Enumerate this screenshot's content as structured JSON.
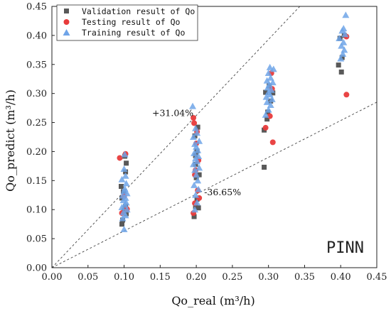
{
  "chart_data": {
    "type": "scatter",
    "xlabel": "Qo_real  (m³/h)",
    "ylabel": "Qo_predict  (m³/h)",
    "xlim": [
      0.0,
      0.45
    ],
    "ylim": [
      0.0,
      0.45
    ],
    "xticks": [
      0.0,
      0.05,
      0.1,
      0.15,
      0.2,
      0.25,
      0.3,
      0.35,
      0.4,
      0.45
    ],
    "yticks": [
      0.0,
      0.05,
      0.1,
      0.15,
      0.2,
      0.25,
      0.3,
      0.35,
      0.4,
      0.45
    ],
    "tick_labels": [
      "0.00",
      "0.05",
      "0.10",
      "0.15",
      "0.20",
      "0.25",
      "0.30",
      "0.35",
      "0.40",
      "0.45"
    ],
    "legend_position": "top-left",
    "grid": false,
    "model_label": "PINN",
    "bounds": [
      {
        "label": "+31.04%",
        "slope": 1.3104,
        "x_at": 0.2
      },
      {
        "label": "-36.65%",
        "slope": 0.6335,
        "x_at": 0.205
      }
    ],
    "series": [
      {
        "name": "Validation result of Qo",
        "marker": "square",
        "color": "#595959",
        "points": [
          [
            0.097,
            0.075
          ],
          [
            0.098,
            0.082
          ],
          [
            0.1,
            0.098
          ],
          [
            0.102,
            0.106
          ],
          [
            0.097,
            0.12
          ],
          [
            0.096,
            0.14
          ],
          [
            0.102,
            0.165
          ],
          [
            0.103,
            0.18
          ],
          [
            0.101,
            0.192
          ],
          [
            0.099,
            0.131
          ],
          [
            0.103,
            0.093
          ],
          [
            0.197,
            0.088
          ],
          [
            0.199,
            0.105
          ],
          [
            0.203,
            0.103
          ],
          [
            0.201,
            0.118
          ],
          [
            0.2,
            0.155
          ],
          [
            0.199,
            0.178
          ],
          [
            0.201,
            0.201
          ],
          [
            0.198,
            0.227
          ],
          [
            0.202,
            0.242
          ],
          [
            0.204,
            0.16
          ],
          [
            0.199,
            0.193
          ],
          [
            0.294,
            0.173
          ],
          [
            0.294,
            0.237
          ],
          [
            0.299,
            0.268
          ],
          [
            0.303,
            0.287
          ],
          [
            0.306,
            0.301
          ],
          [
            0.296,
            0.302
          ],
          [
            0.298,
            0.256
          ],
          [
            0.301,
            0.313
          ],
          [
            0.397,
            0.349
          ],
          [
            0.401,
            0.337
          ],
          [
            0.402,
            0.362
          ],
          [
            0.399,
            0.395
          ],
          [
            0.405,
            0.4
          ]
        ]
      },
      {
        "name": "Testing result of Qo",
        "marker": "circle",
        "color": "#e83b3b",
        "points": [
          [
            0.094,
            0.189
          ],
          [
            0.102,
            0.196
          ],
          [
            0.1,
            0.123
          ],
          [
            0.104,
            0.101
          ],
          [
            0.097,
            0.094
          ],
          [
            0.196,
            0.094
          ],
          [
            0.198,
            0.111
          ],
          [
            0.202,
            0.133
          ],
          [
            0.204,
            0.12
          ],
          [
            0.198,
            0.16
          ],
          [
            0.196,
            0.258
          ],
          [
            0.197,
            0.249
          ],
          [
            0.201,
            0.234
          ],
          [
            0.2,
            0.214
          ],
          [
            0.203,
            0.185
          ],
          [
            0.199,
            0.168
          ],
          [
            0.296,
            0.241
          ],
          [
            0.302,
            0.261
          ],
          [
            0.304,
            0.335
          ],
          [
            0.306,
            0.216
          ],
          [
            0.305,
            0.308
          ],
          [
            0.408,
            0.298
          ],
          [
            0.408,
            0.398
          ]
        ]
      },
      {
        "name": "Training result of Qo",
        "marker": "triangle",
        "color": "#6fa4e8",
        "points": [
          [
            0.1,
            0.066
          ],
          [
            0.098,
            0.085
          ],
          [
            0.102,
            0.09
          ],
          [
            0.099,
            0.095
          ],
          [
            0.104,
            0.1
          ],
          [
            0.097,
            0.104
          ],
          [
            0.101,
            0.108
          ],
          [
            0.103,
            0.112
          ],
          [
            0.099,
            0.116
          ],
          [
            0.102,
            0.12
          ],
          [
            0.098,
            0.124
          ],
          [
            0.104,
            0.128
          ],
          [
            0.1,
            0.132
          ],
          [
            0.101,
            0.136
          ],
          [
            0.103,
            0.145
          ],
          [
            0.097,
            0.152
          ],
          [
            0.102,
            0.158
          ],
          [
            0.1,
            0.17
          ],
          [
            0.101,
            0.195
          ],
          [
            0.195,
            0.278
          ],
          [
            0.198,
            0.1
          ],
          [
            0.201,
            0.112
          ],
          [
            0.199,
            0.125
          ],
          [
            0.203,
            0.135
          ],
          [
            0.197,
            0.142
          ],
          [
            0.202,
            0.15
          ],
          [
            0.2,
            0.16
          ],
          [
            0.198,
            0.168
          ],
          [
            0.204,
            0.172
          ],
          [
            0.196,
            0.178
          ],
          [
            0.201,
            0.183
          ],
          [
            0.199,
            0.188
          ],
          [
            0.203,
            0.192
          ],
          [
            0.197,
            0.197
          ],
          [
            0.202,
            0.202
          ],
          [
            0.2,
            0.208
          ],
          [
            0.198,
            0.213
          ],
          [
            0.204,
            0.218
          ],
          [
            0.196,
            0.225
          ],
          [
            0.201,
            0.232
          ],
          [
            0.199,
            0.24
          ],
          [
            0.296,
            0.263
          ],
          [
            0.3,
            0.272
          ],
          [
            0.303,
            0.28
          ],
          [
            0.298,
            0.285
          ],
          [
            0.305,
            0.29
          ],
          [
            0.297,
            0.294
          ],
          [
            0.302,
            0.298
          ],
          [
            0.3,
            0.302
          ],
          [
            0.304,
            0.306
          ],
          [
            0.299,
            0.31
          ],
          [
            0.301,
            0.315
          ],
          [
            0.306,
            0.319
          ],
          [
            0.298,
            0.322
          ],
          [
            0.303,
            0.327
          ],
          [
            0.3,
            0.335
          ],
          [
            0.302,
            0.345
          ],
          [
            0.307,
            0.342
          ],
          [
            0.4,
            0.36
          ],
          [
            0.403,
            0.368
          ],
          [
            0.405,
            0.375
          ],
          [
            0.401,
            0.382
          ],
          [
            0.404,
            0.388
          ],
          [
            0.398,
            0.395
          ],
          [
            0.406,
            0.402
          ],
          [
            0.402,
            0.408
          ],
          [
            0.404,
            0.412
          ],
          [
            0.407,
            0.435
          ]
        ]
      }
    ]
  }
}
